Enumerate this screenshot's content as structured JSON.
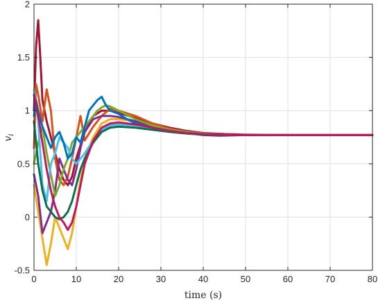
{
  "chart_data": {
    "type": "line",
    "title": "",
    "xlabel": "time (s)",
    "ylabel": "v_i",
    "ylabel_parts": {
      "base": "v",
      "sub": "i"
    },
    "xlim": [
      0,
      80
    ],
    "ylim": [
      -0.5,
      2
    ],
    "grid": true,
    "xticks": [
      0,
      10,
      20,
      30,
      40,
      50,
      60,
      70,
      80
    ],
    "xtick_labels": [
      "0",
      "10",
      "20",
      "30",
      "40",
      "50",
      "60",
      "70",
      "80"
    ],
    "yticks": [
      -0.5,
      0,
      0.5,
      1,
      1.5,
      2
    ],
    "ytick_labels": [
      "-0.5",
      "0",
      "0.5",
      "1",
      "1.5",
      "2"
    ],
    "series": [
      {
        "color": "#A2142F",
        "x": [
          0,
          0.5,
          1,
          1.5,
          2,
          3,
          4,
          5,
          6,
          7,
          8,
          9,
          10,
          12,
          14,
          16,
          18,
          20,
          24,
          28,
          32,
          36,
          40,
          45,
          50,
          60,
          70,
          80
        ],
        "y": [
          1.0,
          1.6,
          1.85,
          1.5,
          1.1,
          0.9,
          0.75,
          0.6,
          0.45,
          0.35,
          0.3,
          0.38,
          0.55,
          0.8,
          0.95,
          1.0,
          1.0,
          0.98,
          0.93,
          0.88,
          0.84,
          0.81,
          0.79,
          0.78,
          0.775,
          0.77,
          0.77,
          0.77
        ]
      },
      {
        "color": "#D95319",
        "x": [
          0,
          0.5,
          1,
          2,
          3,
          4,
          5,
          6,
          7,
          8,
          9,
          10,
          11,
          12,
          14,
          16,
          18,
          20,
          24,
          28,
          32,
          36,
          40,
          45,
          50,
          60,
          70,
          80
        ],
        "y": [
          0.65,
          1.25,
          1.15,
          0.9,
          1.2,
          1.0,
          0.55,
          0.35,
          0.3,
          0.38,
          0.55,
          0.75,
          0.95,
          0.72,
          0.85,
          0.95,
          1.02,
          1.0,
          0.95,
          0.88,
          0.83,
          0.8,
          0.78,
          0.775,
          0.77,
          0.77,
          0.77,
          0.77
        ]
      },
      {
        "color": "#EDB120",
        "x": [
          0,
          1,
          2,
          3,
          4,
          5,
          6,
          7,
          8,
          9,
          10,
          11,
          12,
          14,
          16,
          18,
          20,
          24,
          28,
          32,
          36,
          40,
          45,
          50,
          60,
          70,
          80
        ],
        "y": [
          0.3,
          0.05,
          -0.2,
          -0.45,
          -0.25,
          0.0,
          -0.1,
          -0.2,
          -0.3,
          -0.15,
          0.1,
          0.35,
          0.55,
          0.75,
          0.88,
          0.92,
          0.92,
          0.9,
          0.86,
          0.82,
          0.8,
          0.785,
          0.775,
          0.77,
          0.77,
          0.77,
          0.77
        ]
      },
      {
        "color": "#7E2F8E",
        "x": [
          0,
          1,
          2,
          3,
          4,
          5,
          6,
          7,
          8,
          9,
          10,
          11,
          12,
          14,
          16,
          18,
          20,
          24,
          28,
          32,
          36,
          40,
          44,
          50,
          60,
          70,
          80
        ],
        "y": [
          0.4,
          0.2,
          -0.15,
          -0.05,
          0.05,
          0.25,
          0.55,
          0.45,
          0.35,
          0.3,
          0.45,
          0.65,
          0.8,
          0.92,
          0.95,
          0.95,
          0.94,
          0.9,
          0.85,
          0.81,
          0.79,
          0.77,
          0.765,
          0.77,
          0.77,
          0.77,
          0.77
        ]
      },
      {
        "color": "#77AC30",
        "x": [
          0,
          1,
          2,
          3,
          4,
          5,
          6,
          7,
          8,
          9,
          10,
          11,
          12,
          13,
          14,
          15,
          16,
          17,
          18,
          20,
          24,
          28,
          32,
          36,
          40,
          45,
          50,
          60,
          70,
          80
        ],
        "y": [
          0.5,
          0.7,
          0.85,
          0.6,
          0.4,
          0.2,
          0.3,
          0.45,
          0.55,
          0.7,
          0.75,
          0.8,
          0.85,
          0.9,
          0.95,
          1.0,
          1.03,
          1.05,
          1.04,
          1.0,
          0.92,
          0.86,
          0.82,
          0.8,
          0.785,
          0.775,
          0.77,
          0.77,
          0.77,
          0.77
        ]
      },
      {
        "color": "#4DBEEE",
        "x": [
          0,
          1,
          2,
          3,
          4,
          5,
          6,
          7,
          8,
          9,
          10,
          12,
          14,
          16,
          18,
          20,
          24,
          28,
          32,
          36,
          40,
          45,
          50,
          60,
          70,
          80
        ],
        "y": [
          1.2,
          0.9,
          0.3,
          0.15,
          0.5,
          0.6,
          0.75,
          0.7,
          0.65,
          0.55,
          0.5,
          0.6,
          0.72,
          0.82,
          0.86,
          0.87,
          0.86,
          0.84,
          0.81,
          0.79,
          0.78,
          0.775,
          0.77,
          0.77,
          0.77,
          0.77
        ]
      },
      {
        "color": "#0072BD",
        "x": [
          0,
          0.5,
          1,
          2,
          3,
          4,
          5,
          6,
          7,
          8,
          9,
          10,
          11,
          12,
          13,
          14,
          15,
          16,
          17,
          18,
          20,
          22,
          24,
          28,
          32,
          36,
          40,
          45,
          50,
          60,
          70,
          80
        ],
        "y": [
          0.95,
          1.1,
          1.0,
          0.85,
          0.75,
          0.65,
          0.75,
          0.8,
          0.7,
          0.55,
          0.6,
          0.75,
          0.7,
          0.85,
          1.0,
          1.05,
          1.1,
          1.13,
          1.05,
          1.0,
          0.97,
          0.92,
          0.88,
          0.84,
          0.81,
          0.79,
          0.78,
          0.775,
          0.77,
          0.77,
          0.77,
          0.77
        ]
      },
      {
        "color": "#0B6E4F",
        "x": [
          0,
          1,
          2,
          3,
          4,
          5,
          6,
          7,
          8,
          9,
          10,
          11,
          12,
          14,
          16,
          18,
          20,
          24,
          28,
          32,
          36,
          40,
          45,
          50,
          60,
          70,
          80
        ],
        "y": [
          0.9,
          0.5,
          0.25,
          0.1,
          0.05,
          0.0,
          -0.02,
          0.0,
          0.05,
          0.15,
          0.3,
          0.45,
          0.55,
          0.7,
          0.8,
          0.84,
          0.85,
          0.84,
          0.82,
          0.8,
          0.785,
          0.775,
          0.77,
          0.77,
          0.77,
          0.77,
          0.77
        ]
      },
      {
        "color": "#C2185B",
        "x": [
          0,
          1,
          2,
          3,
          4,
          5,
          6,
          7,
          8,
          9,
          10,
          11,
          12,
          14,
          16,
          18,
          20,
          24,
          28,
          32,
          36,
          40,
          45,
          50,
          60,
          70,
          80
        ],
        "y": [
          1.15,
          0.95,
          0.7,
          0.45,
          0.25,
          0.1,
          0.0,
          -0.05,
          -0.12,
          -0.05,
          0.1,
          0.3,
          0.5,
          0.72,
          0.84,
          0.88,
          0.89,
          0.87,
          0.84,
          0.81,
          0.79,
          0.78,
          0.775,
          0.77,
          0.77,
          0.77,
          0.77
        ]
      }
    ]
  }
}
